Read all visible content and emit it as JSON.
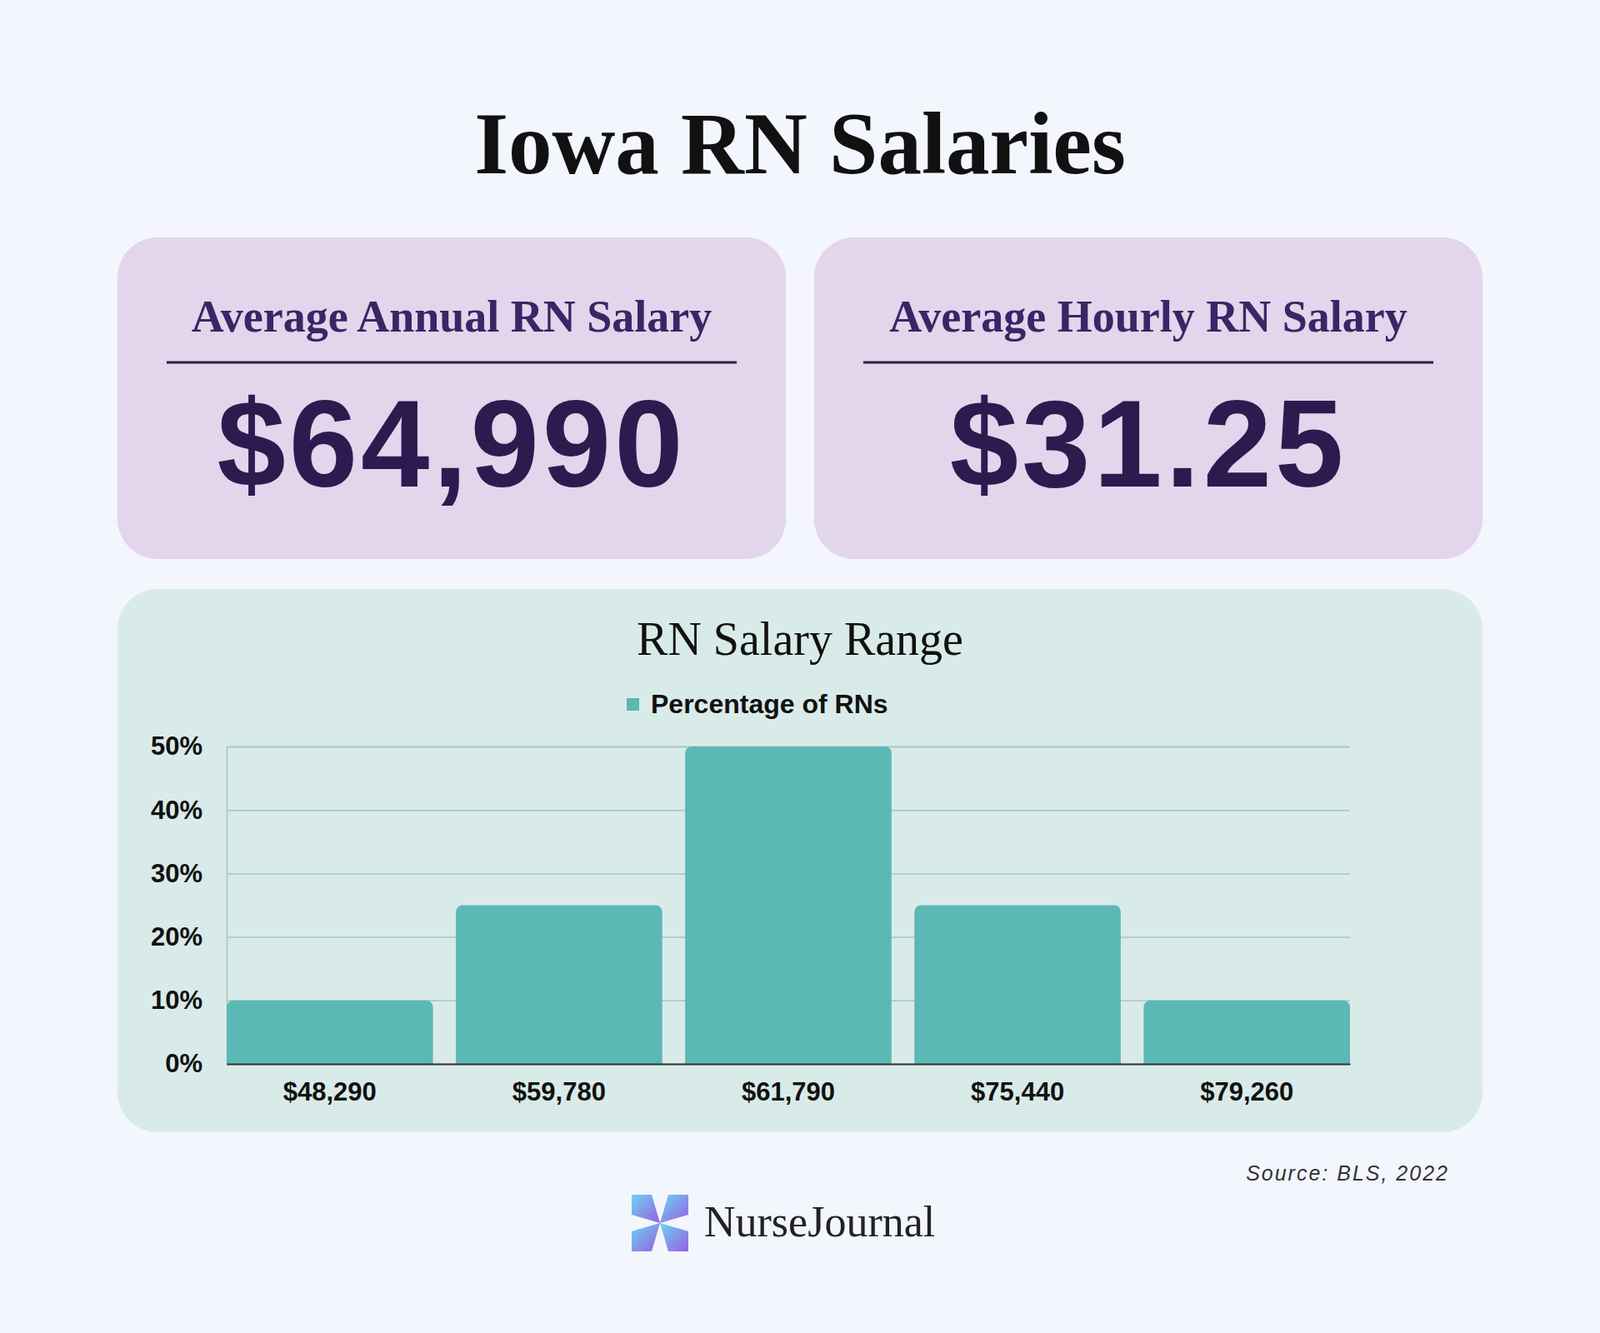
{
  "page": {
    "title": "Iowa RN Salaries",
    "cards": [
      {
        "label": "Average Annual RN Salary",
        "value": "$64,990"
      },
      {
        "label": "Average Hourly RN Salary",
        "value": "$31.25"
      }
    ],
    "source": "Source: BLS, 2022",
    "brand": "NurseJournal"
  },
  "chart_data": {
    "type": "bar",
    "title": "RN Salary Range",
    "categories": [
      "$48,290",
      "$59,780",
      "$61,790",
      "$75,440",
      "$79,260"
    ],
    "series": [
      {
        "name": "Percentage of RNs",
        "color": "#5bb8b4",
        "values": [
          10,
          25,
          50,
          25,
          10
        ]
      }
    ],
    "ylim": [
      0,
      50
    ],
    "yticks": [
      {
        "value": 0,
        "label": "0%"
      },
      {
        "value": 10,
        "label": "10%"
      },
      {
        "value": 20,
        "label": "20%"
      },
      {
        "value": 30,
        "label": "30%"
      },
      {
        "value": 40,
        "label": "40%"
      },
      {
        "value": 50,
        "label": "50%"
      }
    ],
    "grid": true,
    "legend": "top"
  }
}
